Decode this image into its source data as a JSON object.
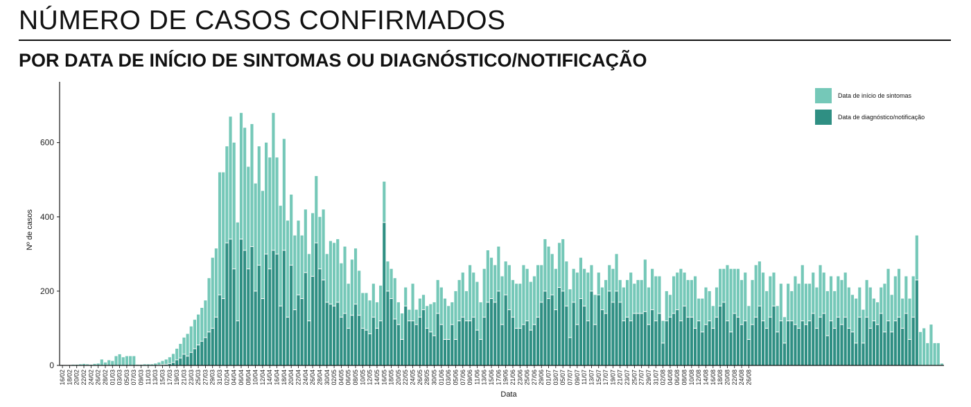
{
  "title": "NÚMERO DE CASOS CONFIRMADOS",
  "subtitle": "POR DATA DE INÍCIO DE SINTOMAS OU DIAGNÓSTICO/NOTIFICAÇÃO",
  "colors": {
    "onset": "#75c8b8",
    "notification": "#2f8f83"
  },
  "chart_data": {
    "type": "bar",
    "stacked": true,
    "xlabel": "Data",
    "ylabel": "Nº de casos",
    "ylim": [
      0,
      760
    ],
    "yticks": [
      0,
      200,
      400,
      600
    ],
    "legend_position": "top-right",
    "grid": false,
    "start_date": "16/02",
    "x_tick_labels": [
      "16/02",
      "18/02",
      "20/02",
      "22/02",
      "24/02",
      "26/02",
      "28/02",
      "01/03",
      "03/03",
      "05/03",
      "07/03",
      "09/03",
      "11/03",
      "13/03",
      "15/03",
      "17/03",
      "19/03",
      "21/03",
      "23/03",
      "25/03",
      "27/03",
      "29/03",
      "31/03",
      "02/04",
      "04/04",
      "06/04",
      "08/04",
      "10/04",
      "12/04",
      "14/04",
      "16/04",
      "18/04",
      "20/04",
      "22/04",
      "24/04",
      "26/04",
      "28/04",
      "30/04",
      "02/05",
      "04/05",
      "06/05",
      "08/05",
      "10/05",
      "12/05",
      "14/05",
      "16/05",
      "18/05",
      "20/05",
      "22/05",
      "24/05",
      "26/05",
      "28/05",
      "30/05",
      "01/06",
      "03/06",
      "05/06",
      "07/06",
      "09/06",
      "11/06",
      "13/06",
      "15/06",
      "17/06",
      "19/06",
      "21/06",
      "23/06",
      "25/06",
      "27/06",
      "29/06",
      "01/07",
      "03/07",
      "05/07",
      "07/07",
      "09/07",
      "11/07",
      "13/07",
      "15/07",
      "17/07",
      "19/07",
      "21/07",
      "23/07",
      "25/07",
      "27/07",
      "29/07",
      "31/07",
      "02/08",
      "04/08",
      "06/08",
      "08/08",
      "10/08",
      "12/08",
      "14/08",
      "16/08",
      "18/08",
      "20/08",
      "22/08",
      "24/08",
      "26/08"
    ],
    "series": [
      {
        "name": "Data de início de sintomas",
        "values": [
          1,
          1,
          1,
          2,
          2,
          3,
          4,
          3,
          2,
          4,
          5,
          16,
          8,
          14,
          12,
          25,
          30,
          22,
          25,
          25,
          25,
          2,
          2,
          3,
          3,
          3,
          5,
          7,
          10,
          13,
          17,
          23,
          30,
          38,
          45,
          60,
          70,
          78,
          82,
          90,
          100,
          145,
          190,
          185,
          330,
          340,
          260,
          330,
          340,
          265,
          340,
          330,
          275,
          330,
          290,
          320,
          290,
          300,
          300,
          370,
          260,
          270,
          300,
          260,
          190,
          200,
          200,
          170,
          170,
          180,
          170,
          180,
          140,
          190,
          130,
          170,
          170,
          170,
          145,
          180,
          120,
          150,
          150,
          120,
          95,
          100,
          90,
          90,
          70,
          95,
          110,
          80,
          80,
          110,
          60,
          70,
          50,
          30,
          100,
          40,
          50,
          40,
          60,
          75,
          90,
          90,
          100,
          110,
          90,
          60,
          130,
          110,
          120,
          80,
          150,
          120,
          130,
          100,
          130,
          140,
          110,
          100,
          120,
          130,
          90,
          120,
          100,
          120,
          120,
          160,
          140,
          130,
          130,
          140,
          100,
          140,
          140,
          110,
          110,
          120,
          140,
          120,
          130,
          90,
          140,
          110,
          100,
          130,
          70,
          80,
          60,
          60,
          90,
          70,
          90,
          100,
          60,
          90,
          100,
          130,
          80,
          90,
          90,
          140,
          100,
          110,
          120,
          100,
          60,
          80,
          60,
          100,
          100,
          140,
          90,
          100,
          100,
          140,
          60,
          90,
          100,
          80,
          60,
          80,
          100,
          90,
          150,
          170,
          120,
          130,
          120,
          130,
          90,
          120,
          140,
          120,
          130,
          100,
          110,
          90,
          70,
          100,
          70,
          100,
          80,
          130,
          120,
          150,
          110,
          100,
          110,
          110,
          140,
          110,
          120,
          120,
          100,
          110,
          120,
          120,
          110,
          100,
          120,
          80,
          90,
          100,
          110,
          60,
          60,
          70,
          130,
          140,
          100,
          120,
          130,
          80,
          100,
          110,
          110,
          120,
          90,
          100,
          60,
          110,
          60,
          60,
          5
        ]
      },
      {
        "name": "Data de diagnóstico/notificação",
        "values": [
          0,
          0,
          0,
          0,
          0,
          0,
          0,
          0,
          0,
          0,
          0,
          0,
          0,
          0,
          0,
          0,
          0,
          0,
          0,
          0,
          0,
          0,
          0,
          0,
          0,
          0,
          0,
          1,
          2,
          3,
          5,
          8,
          15,
          20,
          30,
          25,
          35,
          45,
          55,
          65,
          75,
          90,
          100,
          130,
          190,
          180,
          330,
          340,
          260,
          120,
          340,
          310,
          260,
          320,
          200,
          270,
          180,
          300,
          260,
          310,
          300,
          160,
          310,
          130,
          270,
          150,
          190,
          180,
          250,
          120,
          240,
          330,
          260,
          230,
          170,
          165,
          160,
          170,
          130,
          140,
          100,
          135,
          165,
          135,
          100,
          95,
          85,
          130,
          100,
          120,
          385,
          200,
          180,
          125,
          110,
          70,
          160,
          120,
          120,
          110,
          130,
          150,
          100,
          90,
          80,
          140,
          110,
          70,
          70,
          110,
          70,
          120,
          130,
          120,
          120,
          130,
          95,
          70,
          130,
          170,
          180,
          170,
          200,
          110,
          190,
          150,
          130,
          100,
          100,
          110,
          120,
          95,
          110,
          130,
          170,
          200,
          180,
          190,
          150,
          210,
          200,
          160,
          75,
          170,
          110,
          180,
          160,
          120,
          200,
          110,
          190,
          150,
          140,
          200,
          170,
          200,
          170,
          120,
          130,
          120,
          140,
          140,
          140,
          145,
          110,
          150,
          120,
          140,
          60,
          120,
          130,
          140,
          150,
          120,
          160,
          130,
          130,
          100,
          120,
          90,
          110,
          120,
          100,
          130,
          160,
          170,
          120,
          90,
          140,
          130,
          110,
          120,
          70,
          110,
          130,
          160,
          120,
          100,
          130,
          160,
          90,
          120,
          60,
          120,
          120,
          110,
          100,
          120,
          110,
          120,
          140,
          100,
          130,
          140,
          80,
          120,
          100,
          130,
          110,
          130,
          100,
          90,
          60,
          130,
          60,
          130,
          100,
          120,
          110,
          140,
          90,
          120,
          90,
          120,
          130,
          100,
          140,
          70,
          130,
          230
        ]
      }
    ]
  }
}
